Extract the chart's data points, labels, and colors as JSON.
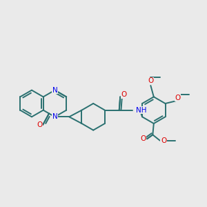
{
  "bg_color": "#eaeaea",
  "bond_color": "#2a7070",
  "nitrogen_color": "#0000ee",
  "oxygen_color": "#dd0000",
  "bond_width": 1.4,
  "fs": 7.5,
  "figsize": [
    3.0,
    3.0
  ],
  "dpi": 100,
  "xlim": [
    0,
    10
  ],
  "ylim": [
    0,
    10
  ]
}
